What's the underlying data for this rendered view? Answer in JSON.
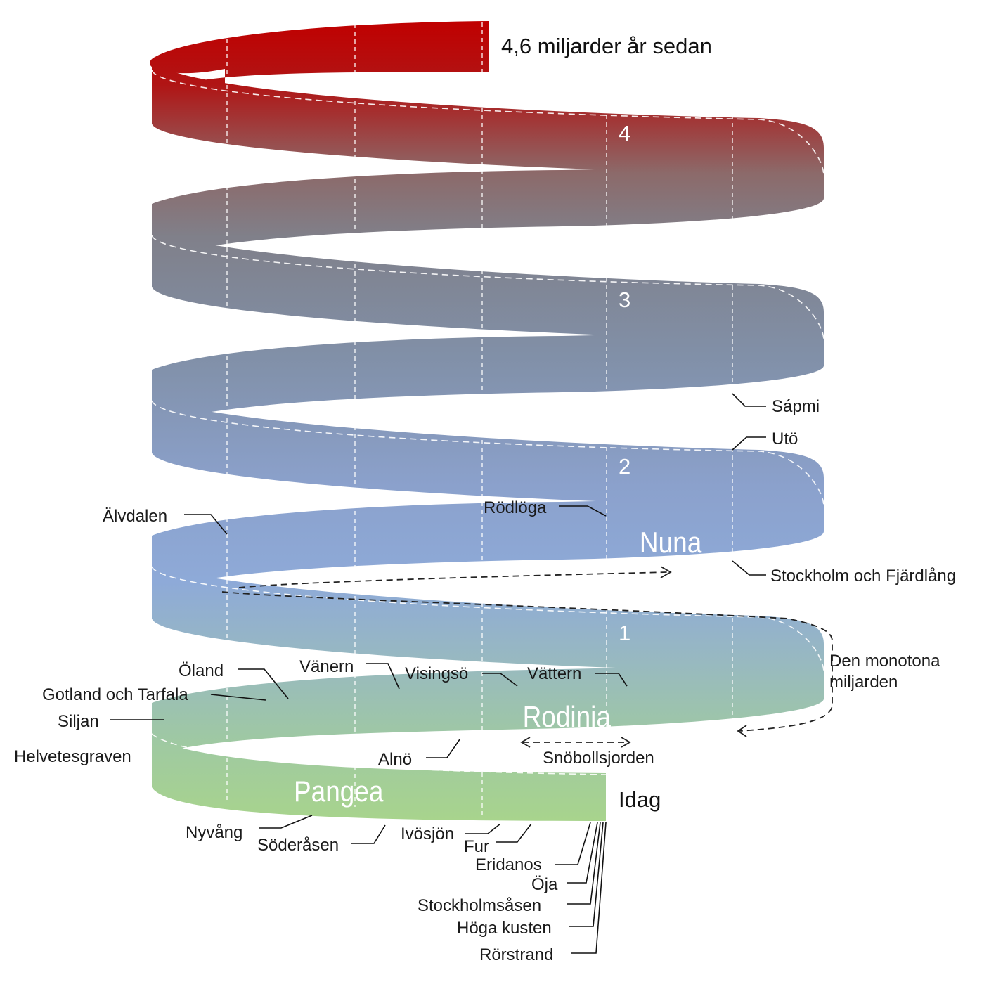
{
  "diagram": {
    "start_label": "4,6 miljarder år sedan",
    "end_label": "Idag",
    "billion_markers": [
      "4",
      "3",
      "2",
      "1"
    ],
    "eras": {
      "nuna": "Nuna",
      "rodinia": "Rodinia",
      "pangea": "Pangea"
    },
    "callouts": {
      "sapmi": "Sápmi",
      "uto": "Utö",
      "alvdalen": "Älvdalen",
      "rodloga": "Rödlöga",
      "stockholm_fjardlang": "Stockholm och Fjärdlång",
      "monotona": [
        "Den monotona",
        "miljarden"
      ],
      "oland": "Öland",
      "vanern": "Vänern",
      "visingso": "Visingsö",
      "vattern": "Vättern",
      "gotland_tarfala": "Gotland och Tarfala",
      "siljan": "Siljan",
      "helvetesgraven": "Helvetesgraven",
      "alno": "Alnö",
      "snobollsjorden": "Snöbollsjorden",
      "nyvang": "Nyvång",
      "soderasen": "Söderåsen",
      "ivosjon": "Ivösjön",
      "fur": "Fur",
      "eridanos": "Eridanos",
      "oja": "Öja",
      "stockholmsasen": "Stockholmsåsen",
      "hoga_kusten": "Höga kusten",
      "rorstrand": "Rörstrand"
    },
    "colors": {
      "top": "#c00000",
      "upper_mid": "#8b7373",
      "grey": "#7f858f",
      "blue": "#8aa4d6",
      "teal": "#97b8b8",
      "green": "#a6d28e"
    }
  }
}
